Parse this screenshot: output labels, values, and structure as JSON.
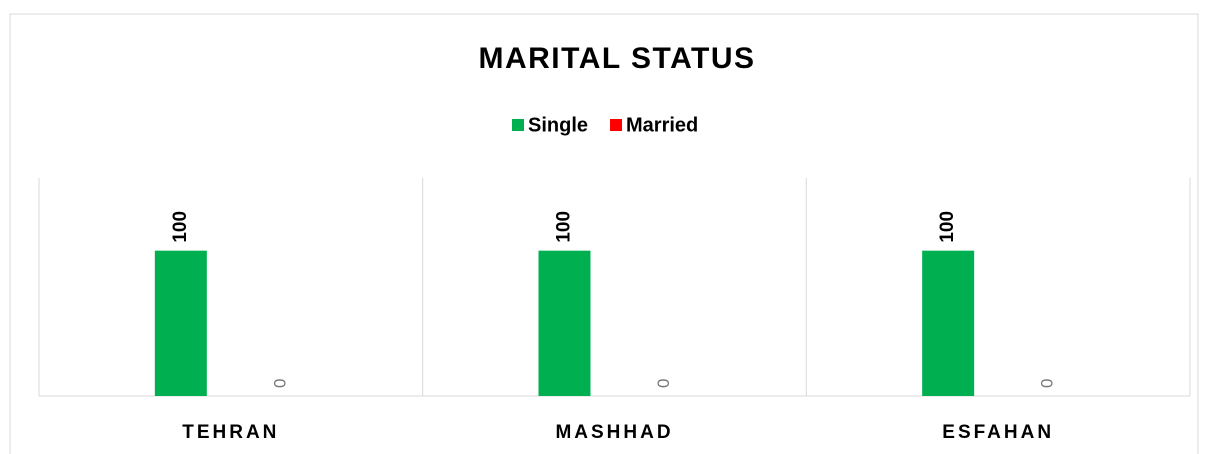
{
  "chart_data": {
    "type": "bar",
    "title": "MARITAL STATUS",
    "categories": [
      "TEHRAN",
      "MASHHAD",
      "ESFAHAN"
    ],
    "series": [
      {
        "name": "Single",
        "color": "#00b050",
        "values": [
          100,
          100,
          100
        ]
      },
      {
        "name": "Married",
        "color": "#ff0000",
        "values": [
          0,
          0,
          0
        ]
      }
    ],
    "ylim": [
      0,
      150
    ],
    "legend": "top"
  }
}
